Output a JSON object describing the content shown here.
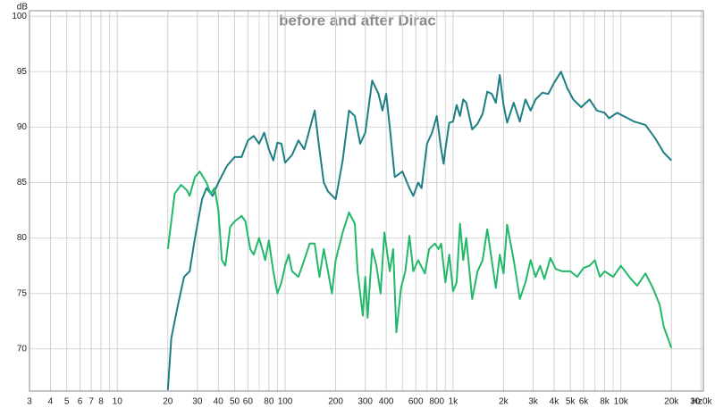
{
  "chart_data": {
    "type": "line",
    "title": "before and after Dirac",
    "ylabel": "dB",
    "xlabel": "Hz",
    "xscale": "log",
    "grid": true,
    "xlim": [
      3,
      31000
    ],
    "ylim": [
      66.2,
      100.5
    ],
    "yticks": [
      70,
      75,
      80,
      85,
      90,
      95,
      100
    ],
    "xticks": [
      3,
      4,
      5,
      6,
      7,
      8,
      10,
      20,
      30,
      40,
      50,
      60,
      80,
      100,
      200,
      300,
      400,
      600,
      800,
      {
        "value": 1000,
        "label": "1k"
      },
      {
        "value": 2000,
        "label": "2k"
      },
      {
        "value": 3000,
        "label": "3k"
      },
      {
        "value": 4000,
        "label": "4k"
      },
      {
        "value": 5000,
        "label": "5k"
      },
      {
        "value": 6000,
        "label": "6k"
      },
      {
        "value": 8000,
        "label": "8k"
      },
      {
        "value": 10000,
        "label": "10k"
      },
      {
        "value": 20000,
        "label": "20k"
      },
      {
        "value": 30000,
        "label": "30.0k"
      }
    ],
    "x_minor_ticks": [
      9,
      70,
      90,
      500,
      700,
      900,
      7000,
      9000
    ],
    "series": [
      {
        "color": "#1c7f84",
        "x": [
          20,
          21,
          23,
          25,
          27,
          29,
          32,
          34,
          37,
          40,
          45,
          50,
          55,
          60,
          65,
          70,
          75,
          80,
          85,
          90,
          95,
          100,
          110,
          120,
          130,
          150,
          160,
          170,
          180,
          200,
          220,
          240,
          260,
          280,
          300,
          330,
          360,
          380,
          400,
          420,
          450,
          500,
          550,
          580,
          620,
          650,
          700,
          750,
          800,
          850,
          880,
          900,
          950,
          1000,
          1050,
          1100,
          1150,
          1200,
          1300,
          1400,
          1500,
          1600,
          1700,
          1800,
          1900,
          2000,
          2100,
          2300,
          2500,
          2700,
          2900,
          3100,
          3400,
          3700,
          4000,
          4400,
          4800,
          5200,
          5800,
          6500,
          7200,
          8000,
          8500,
          9500,
          11000,
          12000,
          14000,
          16000,
          18000,
          20000
        ],
        "values": [
          66.3,
          71,
          74,
          76.5,
          77,
          80,
          83.5,
          84.5,
          83.8,
          85,
          86.5,
          87.3,
          87.3,
          88.8,
          89.2,
          88.5,
          89.5,
          88,
          87,
          88.6,
          88.5,
          86.8,
          87.5,
          88.8,
          88,
          91.5,
          88,
          85,
          84.2,
          83.5,
          87,
          91.5,
          91,
          88.5,
          89.5,
          94.2,
          93,
          91.5,
          93,
          90,
          85.5,
          86,
          84.5,
          83.8,
          85,
          84.5,
          88.5,
          89.5,
          91,
          88,
          86.7,
          88,
          90.4,
          90.5,
          92,
          91,
          92.5,
          92.2,
          89.8,
          90.3,
          91.2,
          93.2,
          93,
          92.2,
          94.7,
          92,
          90.4,
          92.2,
          90.5,
          92.5,
          91.5,
          92.5,
          93.1,
          93,
          94,
          95,
          93.5,
          92.5,
          91.8,
          92.5,
          91.5,
          91.3,
          90.8,
          91.3,
          90.8,
          90.5,
          90.2,
          89,
          87.7,
          87
        ]
      },
      {
        "color": "#22b86a",
        "x": [
          20,
          22,
          24,
          26,
          27,
          29,
          31,
          34,
          36,
          38,
          40,
          42,
          44,
          47,
          50,
          55,
          58,
          62,
          65,
          70,
          73,
          76,
          80,
          85,
          90,
          95,
          100,
          105,
          110,
          120,
          130,
          140,
          150,
          160,
          170,
          180,
          190,
          200,
          220,
          240,
          260,
          270,
          290,
          300,
          310,
          330,
          350,
          370,
          390,
          420,
          440,
          460,
          490,
          520,
          550,
          580,
          620,
          680,
          720,
          780,
          820,
          850,
          900,
          950,
          1000,
          1050,
          1100,
          1150,
          1200,
          1300,
          1400,
          1500,
          1600,
          1700,
          1800,
          1900,
          2000,
          2100,
          2300,
          2500,
          2700,
          2900,
          3100,
          3300,
          3500,
          3800,
          4100,
          4500,
          5000,
          5500,
          6000,
          6500,
          7000,
          7500,
          8000,
          9000,
          10000,
          11500,
          12500,
          14000,
          15500,
          17000,
          18000,
          20000
        ],
        "values": [
          79,
          84,
          84.8,
          84.3,
          83.8,
          85.5,
          86,
          85,
          84,
          84.5,
          82.5,
          78,
          77.5,
          81,
          81.5,
          82,
          81.5,
          79,
          78.5,
          80,
          79,
          78,
          79.8,
          77,
          75,
          76,
          77.5,
          78.5,
          77,
          76.5,
          78,
          79.5,
          79.5,
          76.5,
          79,
          77,
          75,
          78,
          80.5,
          82.3,
          81.3,
          77,
          73,
          76.5,
          72.8,
          79,
          77.5,
          75,
          80.5,
          77,
          79,
          71.5,
          75.5,
          77,
          80.2,
          77,
          78,
          76.8,
          79,
          79.5,
          79,
          79.5,
          76,
          78.5,
          75.2,
          76,
          81.3,
          78,
          80,
          74.5,
          77,
          78,
          80.8,
          78,
          75.5,
          78.5,
          76.8,
          81.2,
          78,
          74.5,
          76,
          78,
          76.5,
          77.5,
          76.3,
          78.2,
          77.2,
          77,
          77,
          76.5,
          77.3,
          77.5,
          78,
          76.5,
          77,
          76.5,
          77.5,
          76.3,
          75.7,
          76.8,
          75.5,
          74,
          72,
          70.1
        ]
      }
    ]
  }
}
